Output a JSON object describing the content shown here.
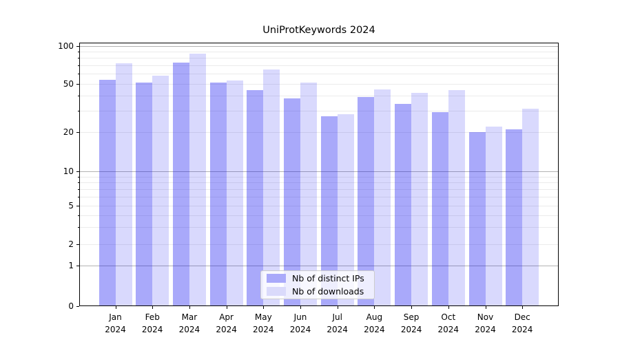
{
  "title": "UniProtKeywords 2024",
  "legend": {
    "items": [
      {
        "label": "Nb of distinct IPs",
        "swatch_color": "#a9a9fa"
      },
      {
        "label": "Nb of downloads",
        "swatch_color": "#dadafb"
      }
    ]
  },
  "colors": {
    "bar_distinct_ips": "rgba(5,5,240,0.345)",
    "bar_downloads": "rgba(5,5,240,0.152)",
    "grid_major": "#b2b2b2",
    "grid_minor": "#ebebeb",
    "spine": "#000000"
  },
  "chart_data": {
    "type": "bar",
    "title": "UniProtKeywords 2024",
    "categories": [
      "Jan 2024",
      "Feb 2024",
      "Mar 2024",
      "Apr 2024",
      "May 2024",
      "Jun 2024",
      "Jul 2024",
      "Aug 2024",
      "Sep 2024",
      "Oct 2024",
      "Nov 2024",
      "Dec 2024"
    ],
    "series": [
      {
        "name": "Nb of distinct IPs",
        "values": [
          54,
          51,
          74,
          51,
          44,
          38,
          27,
          39,
          34,
          29,
          20,
          21
        ]
      },
      {
        "name": "Nb of downloads",
        "values": [
          73,
          58,
          87,
          53,
          65,
          51,
          28,
          45,
          42,
          44,
          22,
          31
        ]
      }
    ],
    "xlabel": "",
    "ylabel": "",
    "yscale": "symlog",
    "ylim": [
      0,
      105
    ],
    "y_ticks": [
      0,
      1,
      2,
      5,
      10,
      20,
      50,
      100
    ],
    "y_gridlines_dark": [
      1,
      10,
      100
    ],
    "y_gridlines_light": [
      2,
      3,
      4,
      5,
      6,
      7,
      8,
      9,
      20,
      30,
      40,
      50,
      60,
      70,
      80,
      90
    ],
    "grid": true,
    "legend_position": "lower center"
  }
}
